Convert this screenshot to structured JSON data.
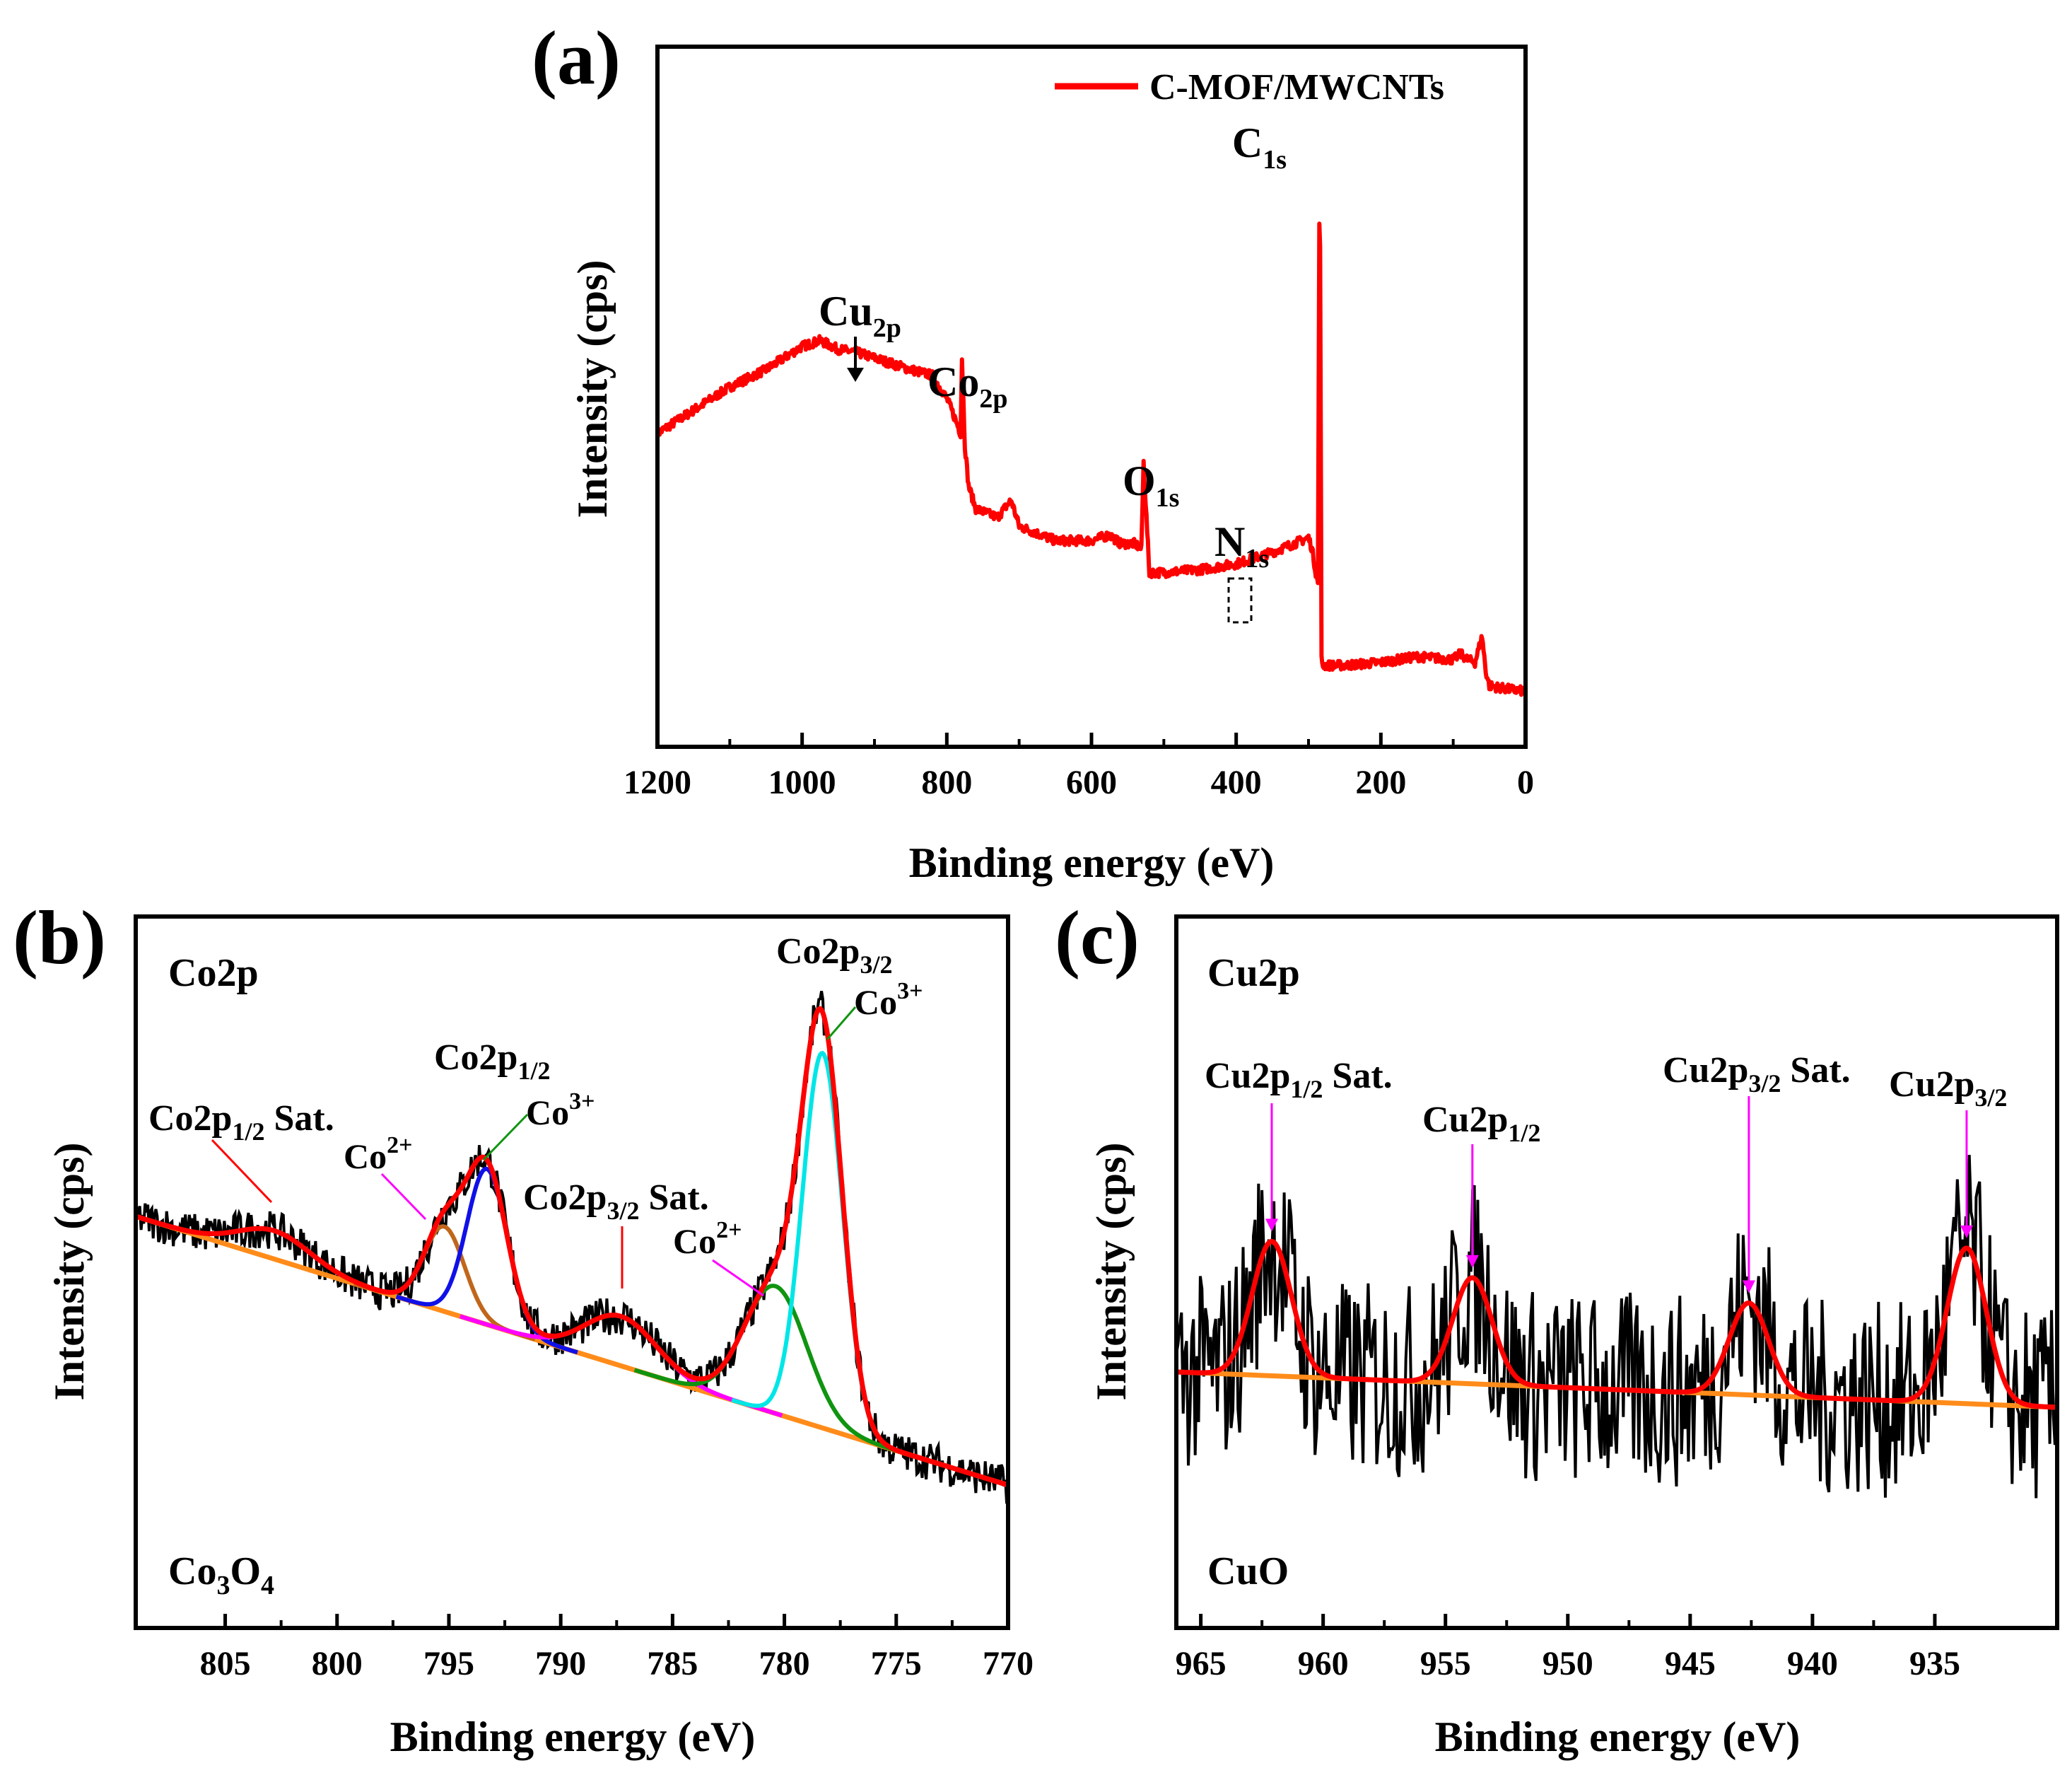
{
  "chart_data": [
    {
      "panel_label": "(a)",
      "type": "line",
      "xlabel": "Binding energy (eV)",
      "ylabel": "Intensity (cps)",
      "xlim": [
        1200,
        0
      ],
      "x_reversed": true,
      "xticks": [
        1200,
        1000,
        800,
        600,
        400,
        200,
        0
      ],
      "ylim": [
        0,
        100
      ],
      "y_ticks_shown": false,
      "legend": {
        "placement": "top-right",
        "entries": [
          "C-MOF/MWCNTs"
        ]
      },
      "series": [
        {
          "name": "C-MOF/MWCNTs",
          "color": "#ff0000",
          "x": [
            1200,
            1150,
            1100,
            1050,
            1000,
            975,
            950,
            925,
            900,
            850,
            820,
            800,
            790,
            781,
            779,
            775,
            770,
            760,
            740,
            730,
            711,
            700,
            650,
            600,
            575,
            560,
            540,
            531,
            528,
            520,
            500,
            450,
            400,
            350,
            320,
            300,
            295,
            290,
            287,
            284.5,
            282,
            280,
            275,
            250,
            200,
            150,
            100,
            90,
            80,
            70,
            60,
            55,
            50,
            30,
            0
          ],
          "y": [
            46,
            50,
            54,
            57,
            61,
            62,
            60.5,
            60,
            59,
            57,
            56,
            52,
            49,
            46,
            59,
            44,
            37,
            33,
            32,
            31.5,
            34.5,
            30,
            27.5,
            27.5,
            28.5,
            27,
            27,
            26,
            41,
            22,
            22,
            22.5,
            23.5,
            25.5,
            27,
            28,
            26,
            22,
            20,
            97,
            7,
            6,
            6,
            6,
            6.5,
            7.5,
            7,
            8,
            7,
            6.5,
            11,
            5,
            2.5,
            2,
            1.5
          ]
        }
      ],
      "annotations": [
        {
          "label": "C",
          "sub": "1s",
          "x": 284.5
        },
        {
          "label": "Cu",
          "sub": "2p",
          "x": 932
        },
        {
          "label": "Co",
          "sub": "2p",
          "x": 779
        },
        {
          "label": "O",
          "sub": "1s",
          "x": 531
        },
        {
          "label": "N",
          "sub": "1s",
          "x": 400
        }
      ]
    },
    {
      "panel_label": "(b)",
      "type": "line",
      "xlabel": "Binding energy (eV)",
      "ylabel": "Intensity (cps)",
      "xlim": [
        809,
        770
      ],
      "x_reversed": true,
      "xticks": [
        805,
        800,
        795,
        790,
        785,
        780,
        775,
        770
      ],
      "ylim": [
        0,
        100
      ],
      "y_ticks_shown": false,
      "panel_texts": {
        "top_left": "Co2p",
        "bottom_left": "Co",
        "bottom_left_sub1": "3",
        "bottom_left_mid": "O",
        "bottom_left_sub2": "4"
      },
      "background_line": {
        "x": [
          809,
          770
        ],
        "y": [
          58,
          20
        ]
      },
      "fit_components": [
        {
          "color": "#c0661b",
          "center": 795.2,
          "sigma": 0.9,
          "height": 12
        },
        {
          "color": "#1010e8",
          "center": 793.3,
          "sigma": 0.9,
          "height": 22
        },
        {
          "color": "#ff00ff",
          "center": 787.3,
          "sigma": 1.6,
          "height": 7
        },
        {
          "color": "#109410",
          "center": 780.4,
          "sigma": 1.4,
          "height": 18
        },
        {
          "color": "#00e6e6",
          "center": 778.3,
          "sigma": 0.9,
          "height": 53
        },
        {
          "color": "#ff0000",
          "center": 802.8,
          "sigma": 1.6,
          "height": 4,
          "envelope_only": true
        }
      ],
      "annotations": [
        {
          "label": "Co2p",
          "sub": "1/2",
          "suffix": " Sat.",
          "arrow_color": "#ff0000",
          "x": 803
        },
        {
          "label": "Co2p",
          "sub": "1/2",
          "suffix": "",
          "arrow_color": null,
          "x": 793.5
        },
        {
          "label": "Co",
          "sup": "2+",
          "arrow_color": "#ff00ff",
          "x": 795
        },
        {
          "label": "Co",
          "sup": "3+",
          "arrow_color": "#109410",
          "x": 793.3
        },
        {
          "label": "Co2p",
          "sub": "3/2",
          "suffix": " Sat.",
          "arrow_color": "#ff0000",
          "x": 787.3
        },
        {
          "label": "Co",
          "sup": "2+",
          "arrow_color": "#ff00ff",
          "x": 780.4
        },
        {
          "label": "Co2p",
          "sub": "3/2",
          "suffix": "",
          "arrow_color": null,
          "x": 778.3
        },
        {
          "label": "Co",
          "sup": "3+",
          "arrow_color": "#109410",
          "x": 778.3
        }
      ]
    },
    {
      "panel_label": "(c)",
      "type": "line",
      "xlabel": "Binding energy (eV)",
      "ylabel": "Intensity (cps)",
      "xlim": [
        966,
        930
      ],
      "x_reversed": true,
      "xticks": [
        965,
        960,
        955,
        950,
        945,
        940,
        935
      ],
      "ylim": [
        0,
        100
      ],
      "y_ticks_shown": false,
      "panel_texts": {
        "top_left": "Cu2p",
        "bottom_left": "CuO"
      },
      "background_line": {
        "x": [
          966,
          930
        ],
        "y": [
          36,
          31
        ]
      },
      "fit_peaks": [
        {
          "center": 962.1,
          "sigma": 0.8,
          "height": 19
        },
        {
          "center": 953.9,
          "sigma": 0.8,
          "height": 15
        },
        {
          "center": 942.6,
          "sigma": 0.8,
          "height": 13
        },
        {
          "center": 933.7,
          "sigma": 0.8,
          "height": 22
        }
      ],
      "annotations": [
        {
          "label": "Cu2p",
          "sub": "1/2",
          "suffix": " Sat.",
          "arrow_color": "#ff00ff",
          "x": 962.1
        },
        {
          "label": "Cu2p",
          "sub": "1/2",
          "suffix": "",
          "arrow_color": "#ff00ff",
          "x": 953.9
        },
        {
          "label": "Cu2p",
          "sub": "3/2",
          "suffix": " Sat.",
          "arrow_color": "#ff00ff",
          "x": 942.6
        },
        {
          "label": "Cu2p",
          "sub": "3/2",
          "suffix": "",
          "arrow_color": "#ff00ff",
          "x": 933.7
        }
      ]
    }
  ],
  "colors": {
    "raw": "#000000",
    "envelope": "#ff0000",
    "background": "#ff8c1a",
    "arrow_pink": "#ff00ff"
  }
}
